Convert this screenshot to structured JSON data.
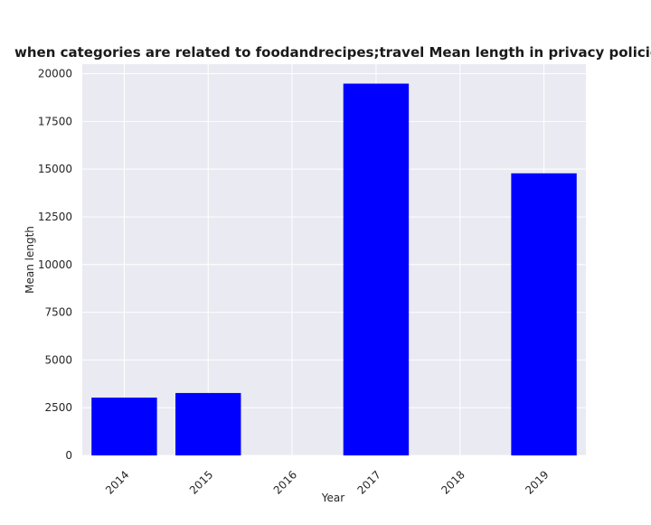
{
  "chart_data": {
    "type": "bar",
    "title": "when categories are related to foodandrecipes;travel Mean length in privacy policies by Year",
    "xlabel": "Year",
    "ylabel": "Mean length",
    "categories": [
      "2014",
      "2015",
      "2016",
      "2017",
      "2018",
      "2019"
    ],
    "values": [
      3030,
      3270,
      null,
      19480,
      null,
      14780
    ],
    "ylim": [
      0,
      20500
    ],
    "yticks": [
      0,
      2500,
      5000,
      7500,
      10000,
      12500,
      15000,
      17500,
      20000
    ],
    "grid": true,
    "bar_color": "#0000ff",
    "plot_background": "#eaeaf2",
    "grid_color": "#ffffff"
  }
}
